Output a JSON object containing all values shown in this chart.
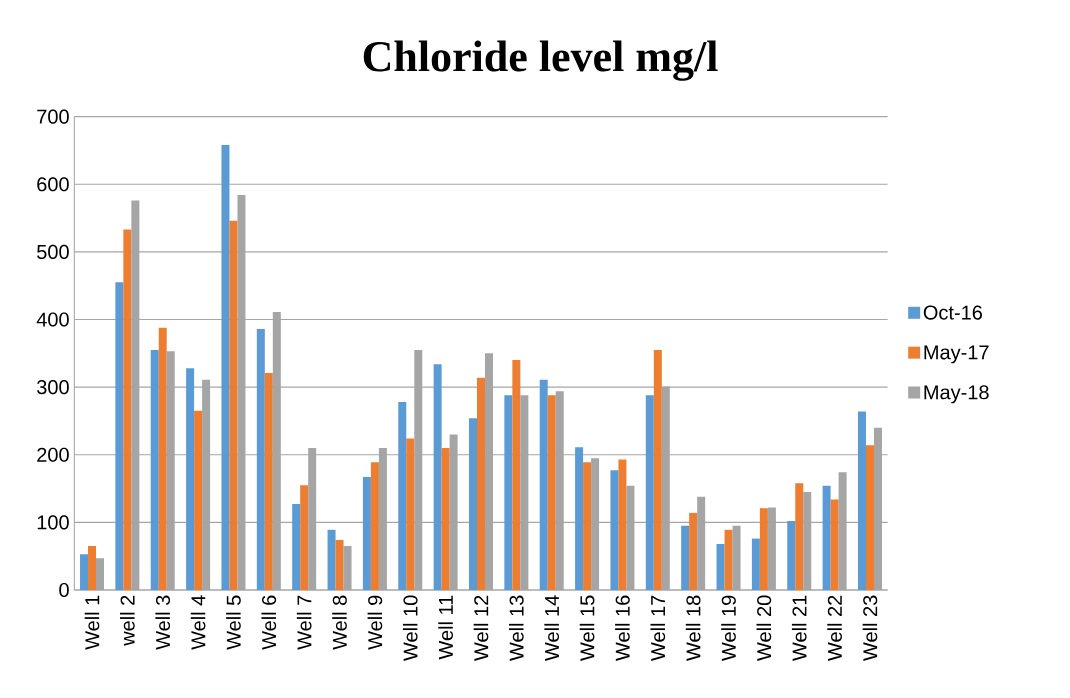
{
  "chart_data": {
    "type": "bar",
    "title": "Chloride level mg/l",
    "categories": [
      "Well 1",
      "well 2",
      "Well 3",
      "Well 4",
      "Well 5",
      "Well 6",
      "Well 7",
      "Well 8",
      "Well 9",
      "Well 10",
      "Well 11",
      "Well 12",
      "Well 13",
      "Well 14",
      "Well 15",
      "Well 16",
      "Well 17",
      "Well 18",
      "Well 19",
      "Well 20",
      "Well 21",
      "Well 22",
      "Well 23"
    ],
    "series": [
      {
        "name": "Oct-16",
        "color": "#5b9bd5",
        "values": [
          53,
          455,
          355,
          328,
          658,
          386,
          127,
          89,
          167,
          278,
          334,
          254,
          288,
          311,
          211,
          177,
          288,
          95,
          68,
          76,
          102,
          154,
          264
        ]
      },
      {
        "name": "May-17",
        "color": "#ed7d31",
        "values": [
          65,
          533,
          388,
          265,
          546,
          321,
          155,
          74,
          189,
          224,
          210,
          314,
          340,
          288,
          189,
          193,
          355,
          114,
          89,
          121,
          158,
          134,
          214
        ]
      },
      {
        "name": "May-18",
        "color": "#a5a5a5",
        "values": [
          47,
          576,
          353,
          311,
          584,
          411,
          210,
          65,
          210,
          355,
          230,
          350,
          288,
          294,
          195,
          154,
          301,
          138,
          95,
          122,
          145,
          174,
          240
        ]
      }
    ],
    "ylim": [
      0,
      700
    ],
    "yticks": [
      0,
      100,
      200,
      300,
      400,
      500,
      600,
      700
    ],
    "grid": "y",
    "legend": "right"
  }
}
